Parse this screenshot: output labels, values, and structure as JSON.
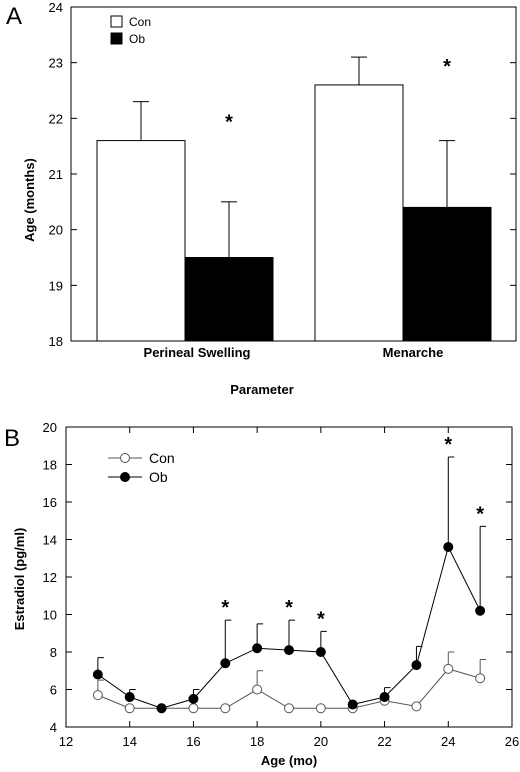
{
  "chart_data": [
    {
      "type": "bar",
      "panel_label": "A",
      "xlabel": "Parameter",
      "ylabel": "Age (months)",
      "ylim": [
        18,
        24
      ],
      "yticks": [
        "18",
        "19",
        "20",
        "21",
        "22",
        "23",
        "24"
      ],
      "categories": [
        "Perineal Swelling",
        "Menarche"
      ],
      "series": [
        {
          "name": "Con",
          "color": "#ffffff",
          "values": [
            21.6,
            22.6
          ],
          "errors": [
            0.7,
            0.5
          ]
        },
        {
          "name": "Ob",
          "color": "#000000",
          "values": [
            19.5,
            20.4
          ],
          "errors": [
            1.0,
            1.2
          ]
        }
      ],
      "annotations": [
        {
          "category": "Perineal Swelling",
          "text": "*"
        },
        {
          "category": "Menarche",
          "text": "*"
        }
      ],
      "legend_position": "top-left",
      "grid": false
    },
    {
      "type": "line",
      "panel_label": "B",
      "xlabel": "Age (mo)",
      "ylabel": "Estradiol (pg/ml)",
      "xlim": [
        12,
        26
      ],
      "ylim": [
        4,
        20
      ],
      "xticks": [
        "12",
        "14",
        "16",
        "18",
        "20",
        "22",
        "24",
        "26"
      ],
      "yticks": [
        "4",
        "6",
        "8",
        "10",
        "12",
        "14",
        "16",
        "18",
        "20"
      ],
      "x": [
        13,
        14,
        15,
        16,
        17,
        18,
        19,
        20,
        21,
        22,
        23,
        24,
        25
      ],
      "series": [
        {
          "name": "Con",
          "marker": "open-circle",
          "values": [
            5.7,
            5.0,
            5.0,
            5.0,
            5.0,
            6.0,
            5.0,
            5.0,
            5.0,
            5.4,
            5.1,
            7.1,
            6.6
          ],
          "errors": [
            0.8,
            0.0,
            0.0,
            0.0,
            0.0,
            1.0,
            0.0,
            0.0,
            0.0,
            0.0,
            0.0,
            0.9,
            1.0
          ]
        },
        {
          "name": "Ob",
          "marker": "filled-circle",
          "values": [
            6.8,
            5.6,
            5.0,
            5.5,
            7.4,
            8.2,
            8.1,
            8.0,
            5.2,
            5.6,
            7.3,
            13.6,
            10.2
          ],
          "errors": [
            0.9,
            0.4,
            0.0,
            0.5,
            2.3,
            1.3,
            1.6,
            1.1,
            0.0,
            0.5,
            1.0,
            4.8,
            4.5
          ]
        }
      ],
      "annotations": [
        {
          "x": 17,
          "text": "*"
        },
        {
          "x": 19,
          "text": "*"
        },
        {
          "x": 20,
          "text": "*"
        },
        {
          "x": 24,
          "text": "*"
        },
        {
          "x": 25,
          "text": "*"
        }
      ],
      "legend_position": "top-left",
      "grid": false
    }
  ]
}
